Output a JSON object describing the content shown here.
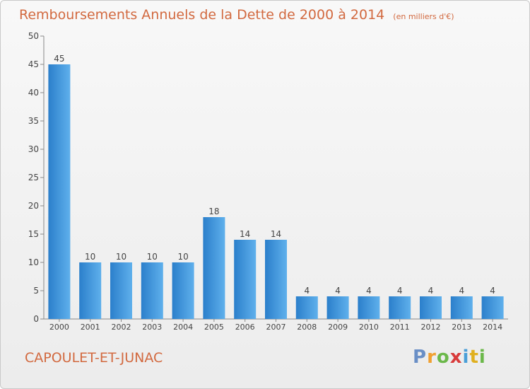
{
  "title": "Remboursements Annuels de la Dette de 2000 à 2014",
  "subtitle": "(en milliers d'€)",
  "commune": "CAPOULET-ET-JUNAC",
  "logo": {
    "letters": [
      "P",
      "r",
      "o",
      "x",
      "i",
      "t",
      "i"
    ]
  },
  "colors": {
    "bar": "#3a8fd6",
    "bar_light": "#6ab4ea",
    "title": "#d2693f",
    "axis": "#888888"
  },
  "chart_data": {
    "type": "bar",
    "categories": [
      "2000",
      "2001",
      "2002",
      "2003",
      "2004",
      "2005",
      "2006",
      "2007",
      "2008",
      "2009",
      "2010",
      "2011",
      "2012",
      "2013",
      "2014"
    ],
    "values": [
      45,
      10,
      10,
      10,
      10,
      18,
      14,
      14,
      4,
      4,
      4,
      4,
      4,
      4,
      4
    ],
    "data_labels": [
      "45",
      "10",
      "10",
      "10",
      "10",
      "18",
      "14",
      "14",
      "4",
      "4",
      "4",
      "4",
      "4",
      "4",
      "4"
    ],
    "ylim": [
      0,
      50
    ],
    "yticks": [
      0,
      5,
      10,
      15,
      20,
      25,
      30,
      35,
      40,
      45,
      50
    ],
    "grid": false,
    "xlabel": "",
    "ylabel": ""
  }
}
